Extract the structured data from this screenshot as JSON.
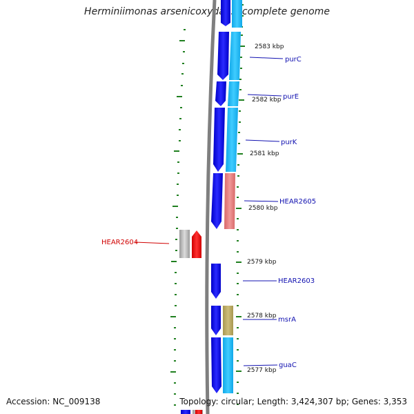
{
  "title": "Herminiimonas arsenicoxydans, complete genome",
  "footer": {
    "accession": "Accession: NC_009138",
    "topology": "Topology: circular; Length: 3,424,307 bp; Genes: 3,353"
  },
  "colors": {
    "backbone": "#7f7f7f",
    "tick": "#1f7f1f",
    "forward_strand": "#1010e8",
    "category_cyan": "#20b8f0",
    "category_pink": "#e88080",
    "category_olive": "#b8a860",
    "category_gray": "#b8b8b8",
    "reverse_strand": "#ff0000",
    "label_blue": "#1010b0",
    "label_red": "#d00000"
  },
  "diagram": {
    "kbp_ticks": [
      "2583 kbp",
      "2582 kbp",
      "2581 kbp",
      "2580 kbp",
      "2579 kbp",
      "2578 kbp",
      "2577 kbp"
    ],
    "gene_labels": [
      {
        "name": "purC",
        "color": "#1010b0"
      },
      {
        "name": "purE",
        "color": "#1010b0"
      },
      {
        "name": "purK",
        "color": "#1010b0"
      },
      {
        "name": "HEAR2605",
        "color": "#1010b0"
      },
      {
        "name": "HEAR2604",
        "color": "#d00000"
      },
      {
        "name": "HEAR2603",
        "color": "#1010b0"
      },
      {
        "name": "msrA",
        "color": "#1010b0"
      },
      {
        "name": "guaC",
        "color": "#1010b0"
      }
    ]
  }
}
